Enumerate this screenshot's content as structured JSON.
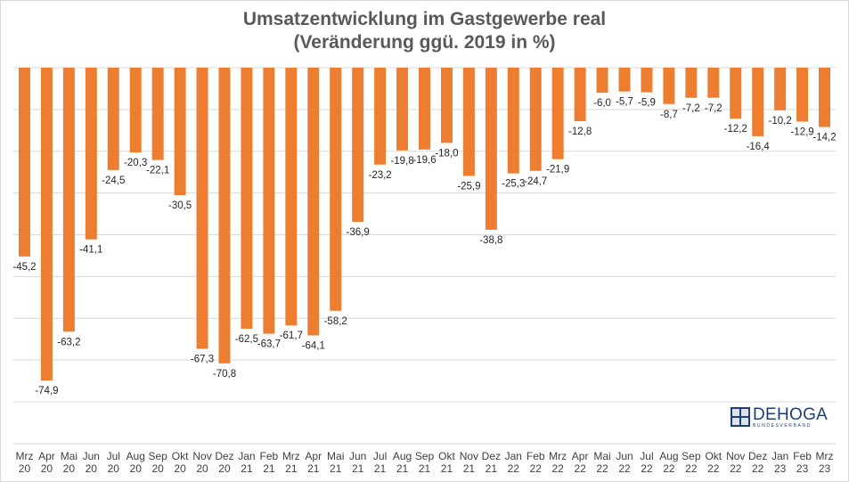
{
  "chart_data": {
    "type": "bar",
    "title_lines": [
      "Umsatzentwicklung im Gastgewerbe real",
      "(Veränderung ggü. 2019 in %)"
    ],
    "categories": [
      [
        "Mrz",
        "20"
      ],
      [
        "Apr",
        "20"
      ],
      [
        "Mai",
        "20"
      ],
      [
        "Jun",
        "20"
      ],
      [
        "Jul",
        "20"
      ],
      [
        "Aug",
        "20"
      ],
      [
        "Sep",
        "20"
      ],
      [
        "Okt",
        "20"
      ],
      [
        "Nov",
        "20"
      ],
      [
        "Dez",
        "20"
      ],
      [
        "Jan",
        "21"
      ],
      [
        "Feb",
        "21"
      ],
      [
        "Mrz",
        "21"
      ],
      [
        "Apr",
        "21"
      ],
      [
        "Mai",
        "21"
      ],
      [
        "Jun",
        "21"
      ],
      [
        "Jul",
        "21"
      ],
      [
        "Aug",
        "21"
      ],
      [
        "Sep",
        "21"
      ],
      [
        "Okt",
        "21"
      ],
      [
        "Nov",
        "21"
      ],
      [
        "Dez",
        "21"
      ],
      [
        "Jan",
        "22"
      ],
      [
        "Feb",
        "22"
      ],
      [
        "Mrz",
        "22"
      ],
      [
        "Apr",
        "22"
      ],
      [
        "Mai",
        "22"
      ],
      [
        "Jun",
        "22"
      ],
      [
        "Jul",
        "22"
      ],
      [
        "Aug",
        "22"
      ],
      [
        "Sep",
        "22"
      ],
      [
        "Okt",
        "22"
      ],
      [
        "Nov",
        "22"
      ],
      [
        "Dez",
        "22"
      ],
      [
        "Jan",
        "23"
      ],
      [
        "Feb",
        "23"
      ],
      [
        "Mrz",
        "23"
      ]
    ],
    "values": [
      -45.2,
      -74.9,
      -63.2,
      -41.1,
      -24.5,
      -20.3,
      -22.1,
      -30.5,
      -67.3,
      -70.8,
      -62.5,
      -63.7,
      -61.7,
      -64.1,
      -58.2,
      -36.9,
      -23.2,
      -19.8,
      -19.6,
      -18.0,
      -25.9,
      -38.8,
      -25.3,
      -24.7,
      -21.9,
      -12.8,
      -6.0,
      -5.7,
      -5.9,
      -8.7,
      -7.2,
      -7.2,
      -12.2,
      -16.4,
      -10.2,
      -12.9,
      -14.2
    ],
    "value_labels": [
      "-45,2",
      "-74,9",
      "-63,2",
      "-41,1",
      "-24,5",
      "-20,3",
      "-22,1",
      "-30,5",
      "-67,3",
      "-70,8",
      "-62,5",
      "-63,7",
      "-61,7",
      "-64,1",
      "-58,2",
      "-36,9",
      "-23,2",
      "-19,8",
      "-19,6",
      "-18,0",
      "-25,9",
      "-38,8",
      "-25,3",
      "-24,7",
      "-21,9",
      "-12,8",
      "-6,0",
      "-5,7",
      "-5,9",
      "-8,7",
      "-7,2",
      "-7,2",
      "-12,2",
      "-16,4",
      "-10,2",
      "-12,9",
      "-14,2"
    ],
    "ylim": [
      -80,
      0
    ],
    "gridlines": [
      0,
      -10,
      -20,
      -30,
      -40,
      -50,
      -60,
      -70,
      -80
    ],
    "bar_color": "#ed7d31",
    "grid": true,
    "legend": "none",
    "xlabel": "",
    "ylabel": ""
  },
  "logo": {
    "name": "DEHOGA",
    "subtitle": "BUNDESVERBAND",
    "color": "#1f3f78"
  }
}
